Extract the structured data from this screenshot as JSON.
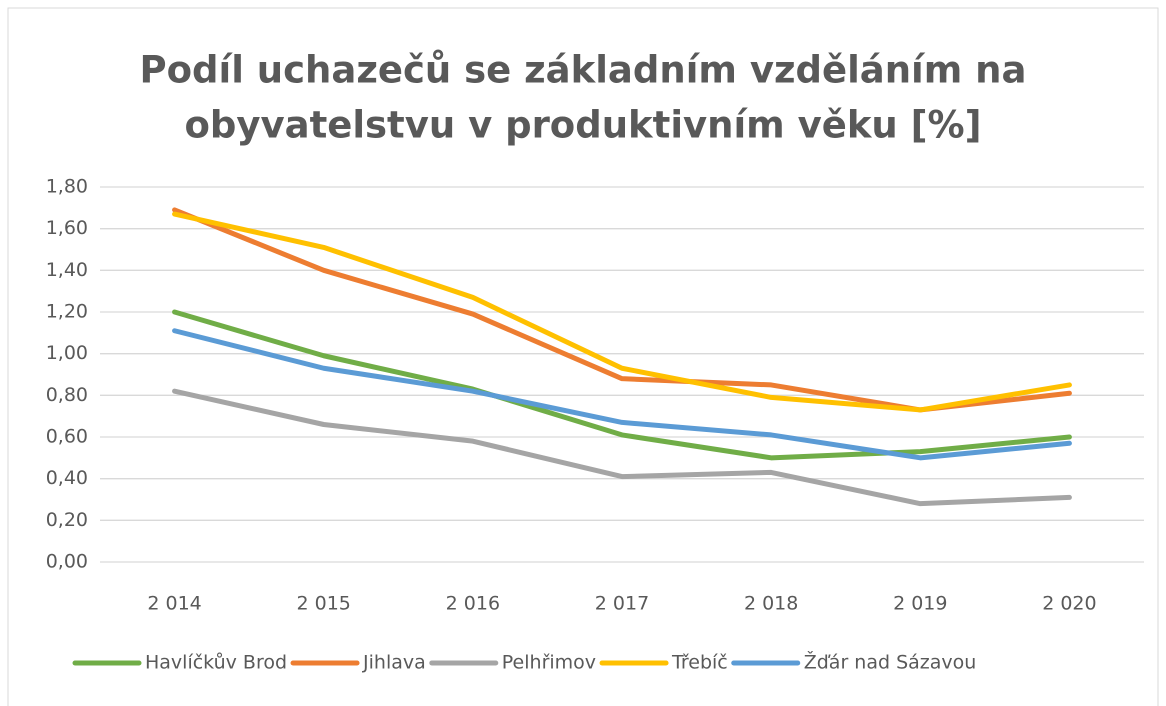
{
  "chart_data": {
    "type": "line",
    "title": [
      "Podíl uchazečů se základním vzděláním na",
      "obyvatelstvu v produktivním věku [%]"
    ],
    "categories": [
      "2 014",
      "2 015",
      "2 016",
      "2 017",
      "2 018",
      "2 019",
      "2 020"
    ],
    "series": [
      {
        "name": "Havlíčkův Brod",
        "color": "#70ad47",
        "values": [
          1.2,
          0.99,
          0.83,
          0.61,
          0.5,
          0.53,
          0.6
        ]
      },
      {
        "name": "Jihlava",
        "color": "#ed7d31",
        "values": [
          1.69,
          1.4,
          1.19,
          0.88,
          0.85,
          0.73,
          0.81
        ]
      },
      {
        "name": "Pelhřimov",
        "color": "#a5a5a5",
        "values": [
          0.82,
          0.66,
          0.58,
          0.41,
          0.43,
          0.28,
          0.31
        ]
      },
      {
        "name": "Třebíč",
        "color": "#ffc000",
        "values": [
          1.67,
          1.51,
          1.27,
          0.93,
          0.79,
          0.73,
          0.85
        ]
      },
      {
        "name": "Žďár nad Sázavou",
        "color": "#5b9bd5",
        "values": [
          1.11,
          0.93,
          0.82,
          0.67,
          0.61,
          0.5,
          0.57
        ]
      }
    ],
    "ylim": [
      0,
      1.8
    ],
    "yticks": [
      {
        "value": 0,
        "label": "0,00"
      },
      {
        "value": 0.2,
        "label": "0,20"
      },
      {
        "value": 0.4,
        "label": "0,40"
      },
      {
        "value": 0.6,
        "label": "0,60"
      },
      {
        "value": 0.8,
        "label": "0,80"
      },
      {
        "value": 1.0,
        "label": "1,00"
      },
      {
        "value": 1.2,
        "label": "1,20"
      },
      {
        "value": 1.4,
        "label": "1,40"
      },
      {
        "value": 1.6,
        "label": "1,60"
      },
      {
        "value": 1.8,
        "label": "1,80"
      }
    ],
    "grid": true,
    "legend": "bottom"
  }
}
